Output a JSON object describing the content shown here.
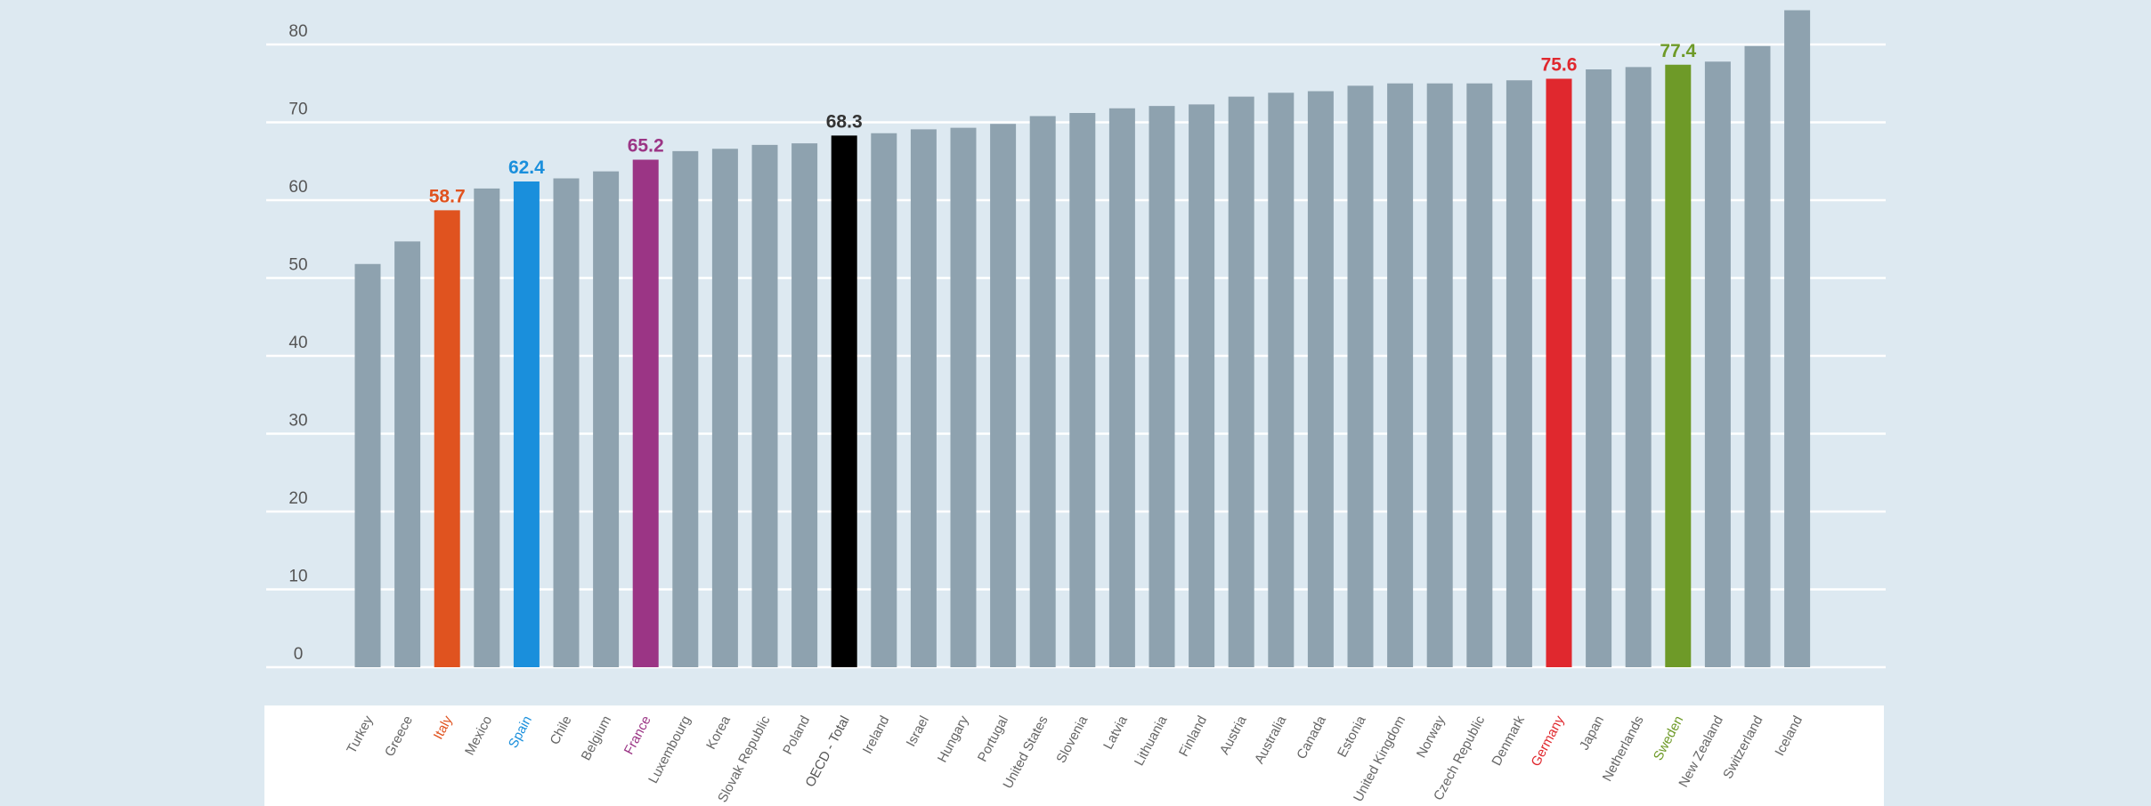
{
  "chart_data": {
    "type": "bar",
    "categories": [
      "Turkey",
      "Greece",
      "Italy",
      "Mexico",
      "Spain",
      "Chile",
      "Belgium",
      "France",
      "Luxembourg",
      "Korea",
      "Slovak Republic",
      "Poland",
      "OECD - Total",
      "Ireland",
      "Israel",
      "Hungary",
      "Portugal",
      "United States",
      "Slovenia",
      "Latvia",
      "Lithuania",
      "Finland",
      "Austria",
      "Australia",
      "Canada",
      "Estonia",
      "United Kingdom",
      "Norway",
      "Czech Republic",
      "Denmark",
      "Germany",
      "Japan",
      "Netherlands",
      "Sweden",
      "New Zealand",
      "Switzerland",
      "Iceland"
    ],
    "values": [
      51.8,
      54.7,
      58.7,
      61.5,
      62.4,
      62.8,
      63.7,
      65.2,
      66.3,
      66.6,
      67.1,
      67.3,
      68.3,
      68.6,
      69.1,
      69.3,
      69.8,
      70.8,
      71.2,
      71.8,
      72.1,
      72.3,
      73.3,
      73.8,
      74.0,
      74.7,
      75.0,
      75.0,
      75.0,
      75.4,
      75.6,
      76.8,
      77.1,
      77.4,
      77.8,
      79.8,
      84.4
    ],
    "highlights": {
      "Italy": {
        "color": "#e0531f",
        "label": "58.7"
      },
      "Spain": {
        "color": "#1a8fdc",
        "label": "62.4"
      },
      "France": {
        "color": "#9b3585",
        "label": "65.2"
      },
      "OECD - Total": {
        "color": "#000000",
        "label": "68.3"
      },
      "Germany": {
        "color": "#e0282e",
        "label": "75.6"
      },
      "Sweden": {
        "color": "#6e9a28",
        "label": "77.4"
      }
    },
    "default_color": "#8ea2af",
    "title": "",
    "xlabel": "",
    "ylabel": "",
    "ylim": [
      0,
      80
    ],
    "yticks": [
      "0",
      "10",
      "20",
      "30",
      "40",
      "50",
      "60",
      "70",
      "80"
    ],
    "grid": true,
    "background": "#dde9f1"
  }
}
